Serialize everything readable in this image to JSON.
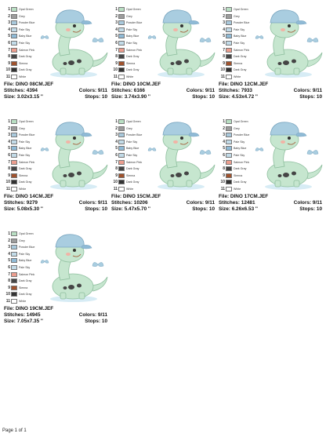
{
  "palette": [
    {
      "num": "1",
      "name": "Opal Green",
      "color": "#b9dfc3"
    },
    {
      "num": "2",
      "name": "Grey",
      "color": "#9c9c9c"
    },
    {
      "num": "3",
      "name": "Powder Blue",
      "color": "#a9c9dc"
    },
    {
      "num": "4",
      "name": "Pale Sky",
      "color": "#c2dbe8"
    },
    {
      "num": "5",
      "name": "Baby Blue",
      "color": "#8fbad6"
    },
    {
      "num": "6",
      "name": "Pale Sky",
      "color": "#c2dbe8"
    },
    {
      "num": "7",
      "name": "Salmon Pink",
      "color": "#ec9d8e"
    },
    {
      "num": "8",
      "name": "Dark Gray",
      "color": "#454545"
    },
    {
      "num": "9",
      "name": "Sienna",
      "color": "#a0522d"
    },
    {
      "num": "10",
      "name": "Dark Gray",
      "color": "#333333"
    },
    {
      "num": "11",
      "name": "White",
      "color": "#ffffff"
    }
  ],
  "cards": [
    {
      "file": "File: DINO 08CM.JEF",
      "stitches": "Stitches: 4394",
      "colors": "Colors: 9/11",
      "size": "Size: 3.02x3.15 ''",
      "stops": "Stops: 10"
    },
    {
      "file": "File: DINO 10CM.JEF",
      "stitches": "Stitches: 6166",
      "colors": "Colors: 9/11",
      "size": "Size: 3.74x3.90 ''",
      "stops": "Stops: 10"
    },
    {
      "file": "File: DINO 12CM.JEF",
      "stitches": "Stitches: 7933",
      "colors": "Colors: 9/11",
      "size": "Size: 4.53x4.72 ''",
      "stops": "Stops: 10"
    },
    {
      "file": "File: DINO 14CM.JEF",
      "stitches": "Stitches: 9279",
      "colors": "Colors: 9/11",
      "size": "Size: 5.08x5.30 ''",
      "stops": "Stops: 10"
    },
    {
      "file": "File: DINO 15CM.JEF",
      "stitches": "Stitches: 10206",
      "colors": "Colors: 9/11",
      "size": "Size: 5.47x5.70 ''",
      "stops": "Stops: 10"
    },
    {
      "file": "File: DINO 17CM.JEF",
      "stitches": "Stitches: 12481",
      "colors": "Colors: 9/11",
      "size": "Size: 6.26x6.53 ''",
      "stops": "Stops: 10"
    },
    {
      "file": "File: DINO 19CM.JEF",
      "stitches": "Stitches: 14945",
      "colors": "Colors: 9/11",
      "size": "Size: 7.05x7.35 ''",
      "stops": "Stops: 10"
    }
  ],
  "footer": "Page 1 of 1"
}
